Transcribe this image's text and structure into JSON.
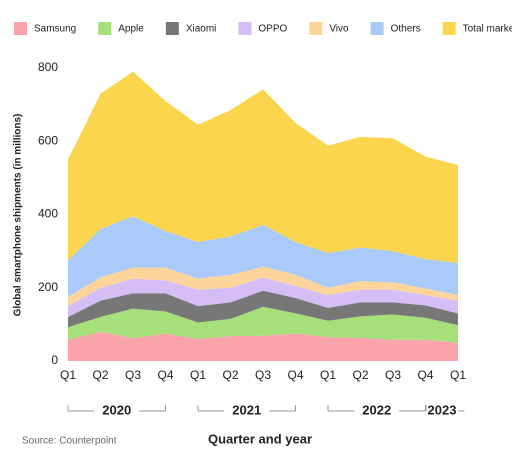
{
  "chart_data": {
    "type": "stacked-area",
    "x_label": "Quarter and year",
    "y_label": "Global smartphone shipments (in millions)",
    "source": "Source: Counterpoint",
    "categories": [
      "Q1",
      "Q2",
      "Q3",
      "Q4",
      "Q1",
      "Q2",
      "Q3",
      "Q4",
      "Q1",
      "Q2",
      "Q3",
      "Q4",
      "Q1"
    ],
    "years": [
      "2020",
      "2021",
      "2022",
      "2023"
    ],
    "ylim": [
      0,
      800
    ],
    "yticks": [
      0,
      200,
      400,
      600,
      800
    ],
    "series": [
      {
        "name": "Samsung",
        "color": "#f9a3ab",
        "values": [
          58,
          80,
          62,
          75,
          60,
          68,
          69,
          75,
          65,
          63,
          58,
          58,
          50
        ]
      },
      {
        "name": "Apple",
        "color": "#a6e07a",
        "values": [
          34,
          40,
          81,
          60,
          45,
          47,
          79,
          55,
          45,
          59,
          69,
          60,
          48
        ]
      },
      {
        "name": "Xiaomi",
        "color": "#777777",
        "values": [
          28,
          45,
          42,
          50,
          45,
          45,
          44,
          42,
          35,
          38,
          33,
          34,
          32
        ]
      },
      {
        "name": "OPPO",
        "color": "#d5bdf5",
        "values": [
          30,
          35,
          40,
          35,
          45,
          40,
          36,
          33,
          35,
          35,
          35,
          28,
          35
        ]
      },
      {
        "name": "Vivo",
        "color": "#fdd59a",
        "values": [
          25,
          28,
          30,
          35,
          30,
          35,
          30,
          30,
          20,
          23,
          20,
          18,
          15
        ]
      },
      {
        "name": "Others",
        "color": "#aacbfa",
        "values": [
          100,
          132,
          140,
          100,
          100,
          105,
          114,
          90,
          95,
          92,
          85,
          80,
          88
        ]
      },
      {
        "name": "Total market",
        "color": "#fbd54d",
        "values": [
          275,
          370,
          395,
          355,
          320,
          345,
          370,
          325,
          293,
          302,
          308,
          280,
          267
        ]
      }
    ]
  }
}
